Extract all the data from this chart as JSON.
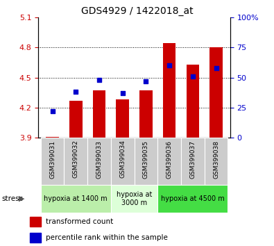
{
  "title": "GDS4929 / 1422018_at",
  "samples": [
    "GSM399031",
    "GSM399032",
    "GSM399033",
    "GSM399034",
    "GSM399035",
    "GSM399036",
    "GSM399037",
    "GSM399038"
  ],
  "bar_values": [
    3.91,
    4.27,
    4.37,
    4.28,
    4.37,
    4.84,
    4.63,
    4.8
  ],
  "percentile_values": [
    22,
    38,
    48,
    37,
    47,
    60,
    51,
    58
  ],
  "bar_bottom": 3.9,
  "ylim_left": [
    3.9,
    5.1
  ],
  "ylim_right": [
    0,
    100
  ],
  "yticks_left": [
    3.9,
    4.2,
    4.5,
    4.8,
    5.1
  ],
  "yticks_right": [
    0,
    25,
    50,
    75,
    100
  ],
  "grid_values": [
    4.2,
    4.5,
    4.8
  ],
  "bar_color": "#cc0000",
  "dot_color": "#0000cc",
  "groups": [
    {
      "label": "hypoxia at 1400 m",
      "indices": [
        0,
        1,
        2
      ],
      "color": "#bbeeaa"
    },
    {
      "label": "hypoxia at\n3000 m",
      "indices": [
        3,
        4
      ],
      "color": "#ddffd8"
    },
    {
      "label": "hypoxia at 4500 m",
      "indices": [
        5,
        6,
        7
      ],
      "color": "#44dd44"
    }
  ],
  "tick_label_color_left": "#cc0000",
  "tick_label_color_right": "#0000cc",
  "title_color": "#000000",
  "bar_color_legend": "#cc0000",
  "dot_color_legend": "#0000cc"
}
